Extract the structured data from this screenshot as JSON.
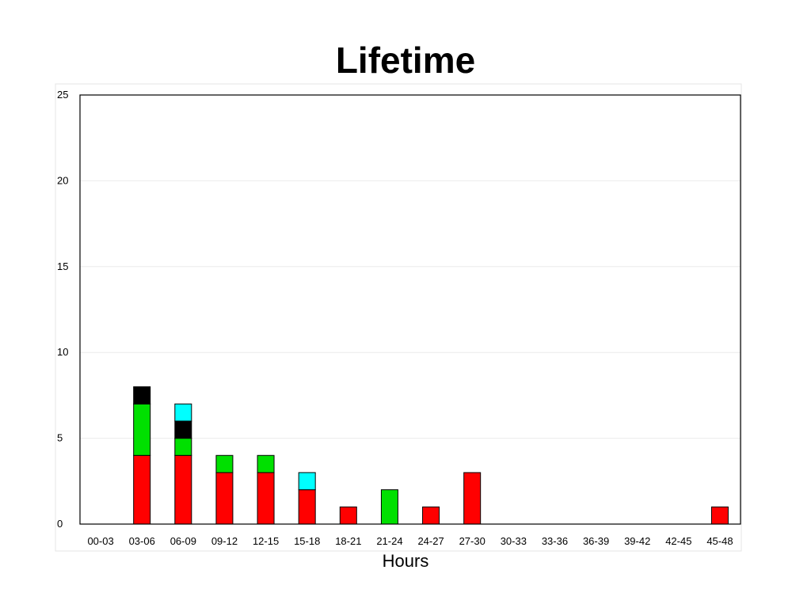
{
  "chart_data": {
    "type": "bar",
    "stacked": true,
    "title": "Lifetime",
    "xlabel": "Hours",
    "ylabel": "",
    "ylim": [
      0,
      25
    ],
    "yticks": [
      0,
      5,
      10,
      15,
      20,
      25
    ],
    "grid": true,
    "legend": "none",
    "categories": [
      "00-03",
      "03-06",
      "06-09",
      "09-12",
      "12-15",
      "15-18",
      "18-21",
      "21-24",
      "24-27",
      "27-30",
      "30-33",
      "33-36",
      "36-39",
      "39-42",
      "42-45",
      "45-48"
    ],
    "series": [
      {
        "color": "#ff0000",
        "values": [
          0,
          4,
          4,
          3,
          3,
          2,
          1,
          0,
          1,
          3,
          0,
          0,
          0,
          0,
          0,
          1
        ]
      },
      {
        "color": "#00e000",
        "values": [
          0,
          3,
          1,
          1,
          1,
          0,
          0,
          2,
          0,
          0,
          0,
          0,
          0,
          0,
          0,
          0
        ]
      },
      {
        "color": "#000000",
        "values": [
          0,
          1,
          1,
          0,
          0,
          0,
          0,
          0,
          0,
          0,
          0,
          0,
          0,
          0,
          0,
          0
        ]
      },
      {
        "color": "#00ffff",
        "values": [
          0,
          0,
          1,
          0,
          0,
          1,
          0,
          0,
          0,
          0,
          0,
          0,
          0,
          0,
          0,
          0
        ]
      }
    ]
  }
}
